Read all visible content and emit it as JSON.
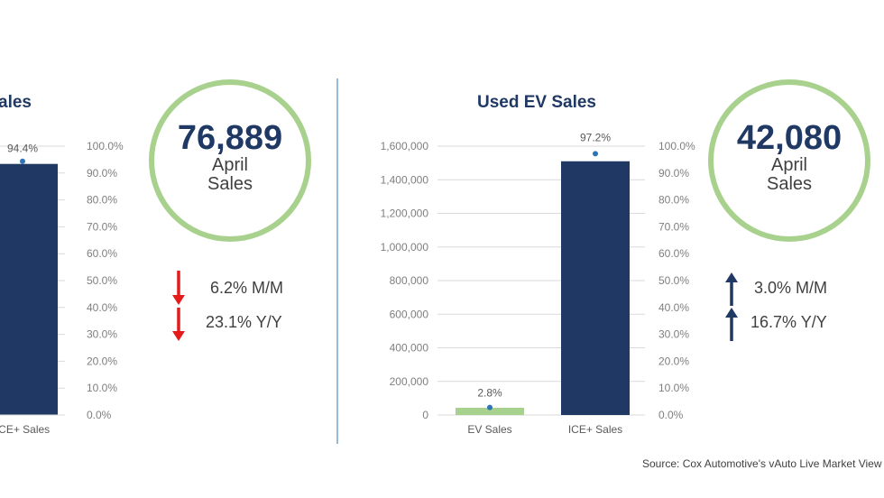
{
  "chart_data": [
    {
      "type": "bar",
      "title": "ales",
      "categories": [
        "ICE+ Sales"
      ],
      "series": [
        {
          "values": [
            72583
          ]
        }
      ],
      "share_labels": [
        "94.4%"
      ],
      "share_values": [
        94.4
      ],
      "right_axis_ticks": [
        "100.0%",
        "90.0%",
        "80.0%",
        "70.0%",
        "60.0%",
        "50.0%",
        "40.0%",
        "30.0%",
        "20.0%",
        "10.0%",
        "0.0%"
      ],
      "y2lim": [
        0,
        100
      ],
      "bar_color": "#1f3864",
      "kpi": {
        "value": "76,889",
        "line1": "April",
        "line2": "Sales",
        "ring_color": "#a9d18e"
      },
      "changes": [
        {
          "text": "6.2% M/M",
          "direction": "down",
          "color": "#e31b1b"
        },
        {
          "text": "23.1% Y/Y",
          "direction": "down",
          "color": "#e31b1b"
        }
      ]
    },
    {
      "type": "bar",
      "title": "Used EV Sales",
      "categories": [
        "EV Sales",
        "ICE+ Sales"
      ],
      "series": [
        {
          "values": [
            43000,
            1510000
          ]
        }
      ],
      "share_labels": [
        "2.8%",
        "97.2%"
      ],
      "share_values": [
        2.8,
        97.2
      ],
      "left_axis_ticks": [
        "1,600,000",
        "1,400,000",
        "1,200,000",
        "1,000,000",
        "800,000",
        "600,000",
        "400,000",
        "200,000",
        "0"
      ],
      "ylim": [
        0,
        1600000
      ],
      "right_axis_ticks": [
        "100.0%",
        "90.0%",
        "80.0%",
        "70.0%",
        "60.0%",
        "50.0%",
        "40.0%",
        "30.0%",
        "20.0%",
        "10.0%",
        "0.0%"
      ],
      "y2lim": [
        0,
        100
      ],
      "bar_colors": [
        "#a9d18e",
        "#1f3864"
      ],
      "kpi": {
        "value": "42,080",
        "line1": "April",
        "line2": "Sales",
        "ring_color": "#a9d18e"
      },
      "changes": [
        {
          "text": "3.0% M/M",
          "direction": "up",
          "color": "#1f3864"
        },
        {
          "text": "16.7% Y/Y",
          "direction": "up",
          "color": "#1f3864"
        }
      ]
    }
  ],
  "source": "Source: Cox Automotive's vAuto Live Market View",
  "colors": {
    "dot": "#2e75b6",
    "grid": "#d9d9d9",
    "divider": "#2e75b6"
  }
}
